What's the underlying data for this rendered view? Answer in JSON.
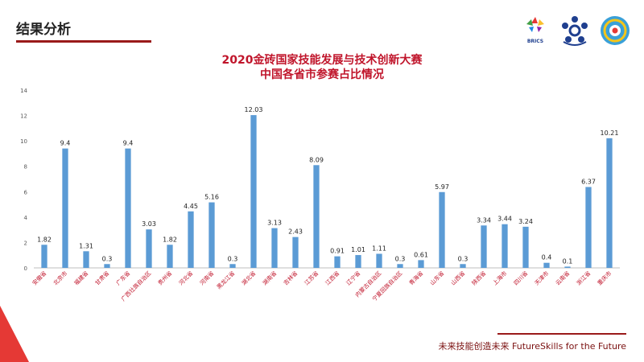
{
  "header": {
    "section_title": "结果分析"
  },
  "logos": [
    {
      "name": "brics-business-council-logo",
      "text": "BRICS"
    },
    {
      "name": "competition-emblem-logo"
    },
    {
      "name": "globe-emblem-logo"
    }
  ],
  "footer": {
    "slogan": "未来技能创造未来 FutureSkills for the Future"
  },
  "colors": {
    "bar": "#5b9bd5",
    "accent": "#c0152b",
    "rule": "#9a1a1a"
  },
  "chart_data": {
    "type": "bar",
    "title_line1": "2020金砖国家技能发展与技术创新大赛",
    "title_line2": "中国各省市参赛占比情况",
    "categories": [
      "安徽省",
      "北京市",
      "福建省",
      "甘肃省",
      "广东省",
      "广西壮族自治区",
      "贵州省",
      "河北省",
      "河南省",
      "黑龙江省",
      "湖北省",
      "湖南省",
      "吉林省",
      "江苏省",
      "江西省",
      "辽宁省",
      "内蒙古自治区",
      "宁夏回族自治区",
      "青海省",
      "山东省",
      "山西省",
      "陕西省",
      "上海市",
      "四川省",
      "天津市",
      "云南省",
      "浙江省",
      "重庆市"
    ],
    "values": [
      1.82,
      9.4,
      1.31,
      0.3,
      9.4,
      3.03,
      1.82,
      4.45,
      5.16,
      0.3,
      12.03,
      3.13,
      2.43,
      8.09,
      0.91,
      1.01,
      1.11,
      0.3,
      0.61,
      5.97,
      0.3,
      3.34,
      3.44,
      3.24,
      0.4,
      0.1,
      6.37,
      10.21
    ],
    "ylim": [
      0,
      14
    ],
    "yticks": [
      0,
      2,
      4,
      6,
      8,
      10,
      12,
      14
    ],
    "grid": false,
    "legend": "none"
  }
}
